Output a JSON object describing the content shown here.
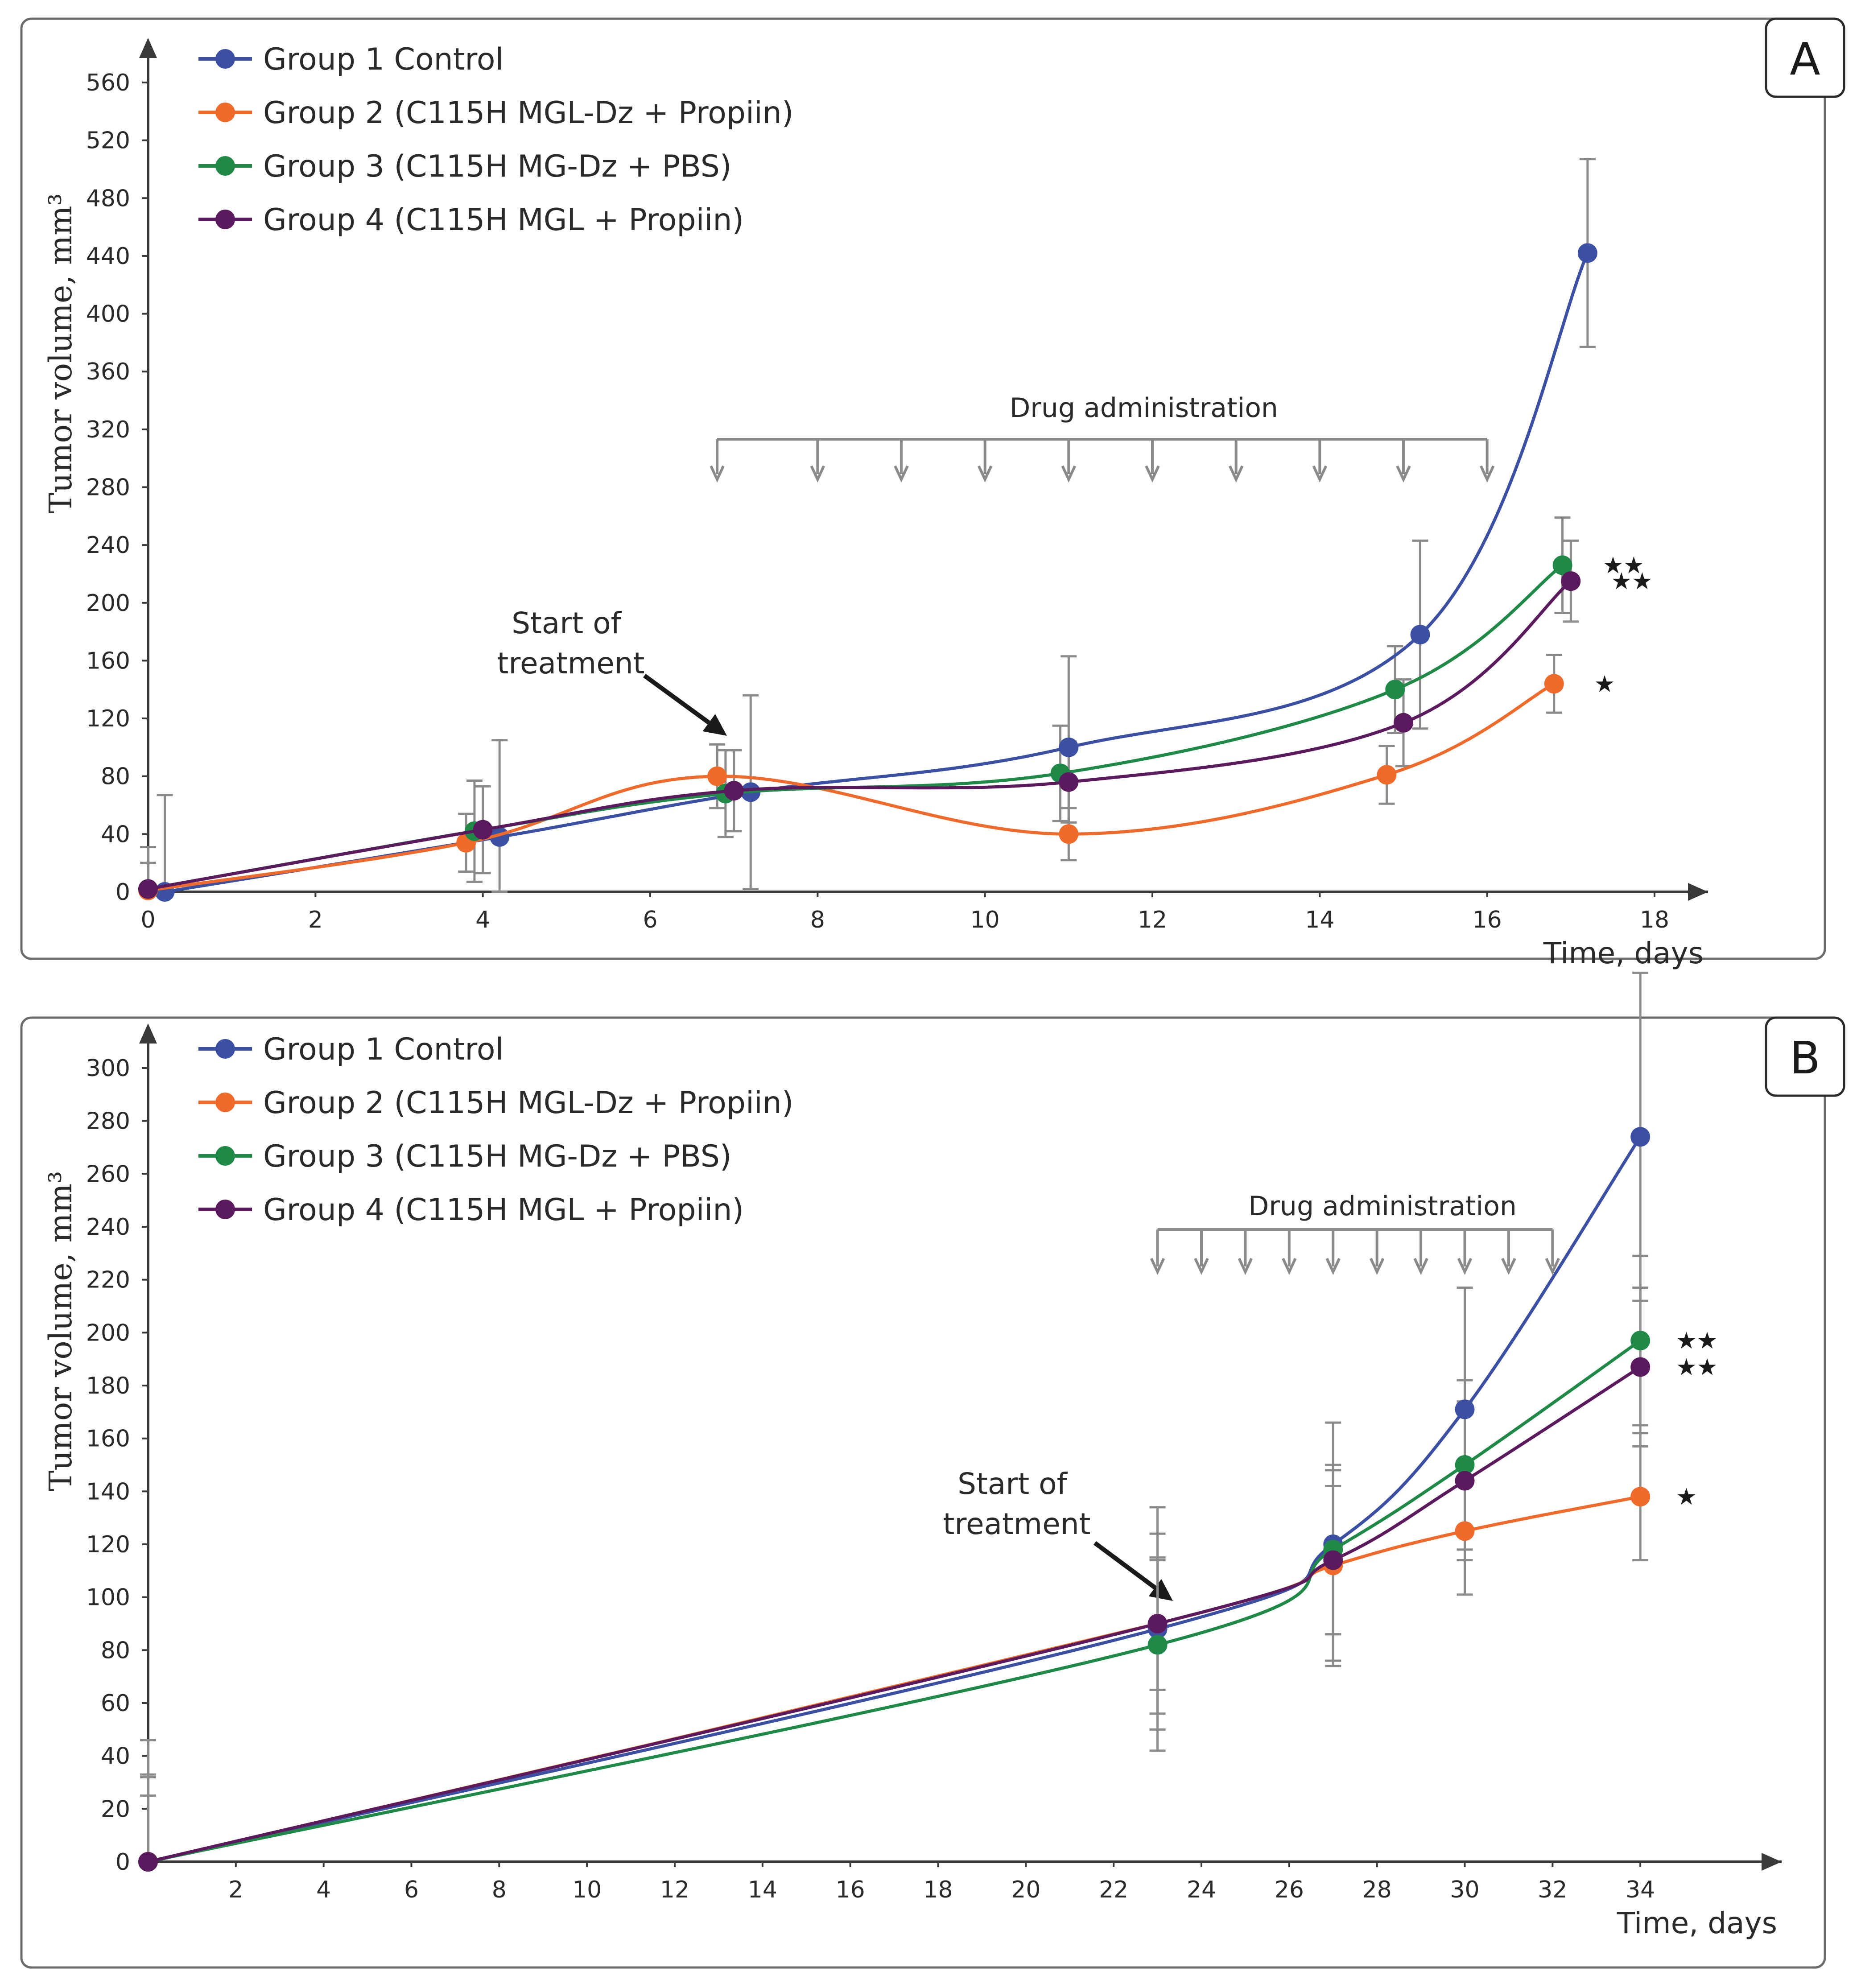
{
  "chart_data": [
    {
      "panel": "A",
      "type": "line",
      "ylabel": "Tumor volume, mm³",
      "xlabel": "Time, days",
      "ylim": [
        0,
        560
      ],
      "xlim": [
        0,
        18
      ],
      "yticks": [
        0,
        40,
        80,
        120,
        160,
        200,
        240,
        280,
        320,
        360,
        400,
        440,
        480,
        520,
        560
      ],
      "xticks": [
        0,
        2,
        4,
        6,
        8,
        10,
        12,
        14,
        16,
        18
      ],
      "legend_position": "top-left",
      "series": [
        {
          "name": "Group 1 Control",
          "color": "#3b4fa3",
          "x": [
            0.2,
            4.2,
            7.2,
            11,
            15.2,
            17.2
          ],
          "y": [
            0,
            38,
            69,
            100,
            178,
            442
          ],
          "err": [
            67,
            67,
            67,
            63,
            65,
            65
          ]
        },
        {
          "name": "Group 2 (C115H MGL-Dz + Propiin)",
          "color": "#ef6a2b",
          "x": [
            0,
            3.8,
            6.8,
            11,
            14.8,
            16.8
          ],
          "y": [
            1,
            34,
            80,
            40,
            81,
            144
          ],
          "err": [
            30,
            20,
            22,
            18,
            20,
            20
          ]
        },
        {
          "name": "Group 3 (C115H MG-Dz + PBS)",
          "color": "#1f8a48",
          "x": [
            0,
            3.9,
            6.9,
            10.9,
            14.9,
            16.9
          ],
          "y": [
            2,
            42,
            68,
            82,
            140,
            226
          ],
          "err": [
            18,
            35,
            30,
            33,
            30,
            33
          ]
        },
        {
          "name": "Group 4 (C115H MGL + Propiin)",
          "color": "#5c1a5e",
          "x": [
            0,
            4,
            7,
            11,
            15,
            17
          ],
          "y": [
            2,
            43,
            70,
            76,
            117,
            215
          ],
          "err": [
            18,
            30,
            28,
            28,
            30,
            28
          ]
        }
      ],
      "annotations": {
        "start_of_treatment": "Start of\ntreatment",
        "drug_administration": "Drug administration",
        "drug_days": [
          6.8,
          8,
          9,
          10,
          11,
          12,
          13,
          14,
          15,
          16
        ],
        "significance": [
          {
            "series": "Group 3 (C115H MG-Dz + PBS)",
            "marker": "★★"
          },
          {
            "series": "Group 4 (C115H MGL + Propiin)",
            "marker": "★★"
          },
          {
            "series": "Group 2 (C115H MGL-Dz + Propiin)",
            "marker": "★"
          }
        ]
      }
    },
    {
      "panel": "B",
      "type": "line",
      "ylabel": "Tumor volume, mm³",
      "xlabel": "Time, days",
      "ylim": [
        0,
        300
      ],
      "xlim": [
        0,
        36
      ],
      "yticks": [
        0,
        20,
        40,
        60,
        80,
        100,
        120,
        140,
        160,
        180,
        200,
        220,
        240,
        260,
        280,
        300
      ],
      "xticks": [
        2,
        4,
        6,
        8,
        10,
        12,
        14,
        16,
        18,
        20,
        22,
        24,
        26,
        28,
        30,
        32,
        34
      ],
      "legend_position": "top-left",
      "series": [
        {
          "name": "Group 1 Control",
          "color": "#3b4fa3",
          "x": [
            0,
            23,
            27,
            30,
            34
          ],
          "y": [
            0,
            88,
            120,
            171,
            274
          ],
          "err": [
            46,
            46,
            46,
            46,
            62
          ]
        },
        {
          "name": "Group 2 (C115H MGL-Dz + Propiin)",
          "color": "#ef6a2b",
          "x": [
            0,
            23,
            27,
            30,
            34
          ],
          "y": [
            0,
            90,
            112,
            125,
            138
          ],
          "err": [
            33,
            34,
            36,
            24,
            24
          ]
        },
        {
          "name": "Group 3 (C115H MG-Dz + PBS)",
          "color": "#1f8a48",
          "x": [
            0,
            23,
            27,
            30,
            34
          ],
          "y": [
            0,
            82,
            118,
            150,
            197
          ],
          "err": [
            32,
            32,
            32,
            32,
            32
          ]
        },
        {
          "name": "Group 4 (C115H MGL + Propiin)",
          "color": "#5c1a5e",
          "x": [
            0,
            23,
            27,
            30,
            34
          ],
          "y": [
            0,
            90,
            114,
            144,
            187
          ],
          "err": [
            25,
            25,
            28,
            30,
            30
          ]
        }
      ],
      "annotations": {
        "start_of_treatment": "Start of\ntreatment",
        "drug_administration": "Drug administration",
        "drug_days": [
          23,
          24,
          25,
          26,
          27,
          28,
          29,
          30,
          31,
          32
        ],
        "significance": [
          {
            "series": "Group 3 (C115H MG-Dz + PBS)",
            "marker": "★★"
          },
          {
            "series": "Group 4 (C115H MGL + Propiin)",
            "marker": "★★"
          },
          {
            "series": "Group 2 (C115H MGL-Dz + Propiin)",
            "marker": "★"
          }
        ]
      }
    }
  ]
}
